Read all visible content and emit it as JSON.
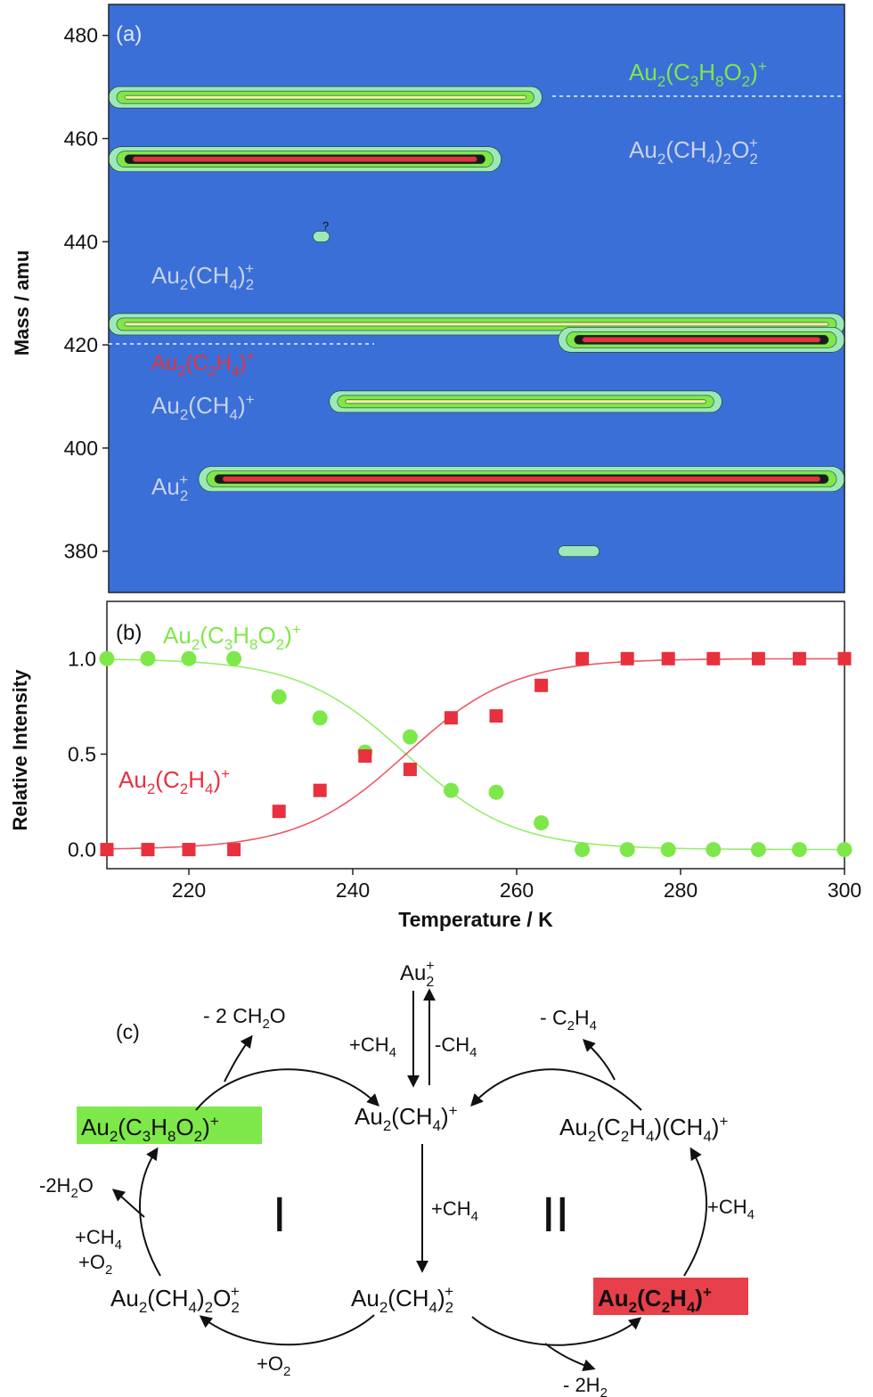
{
  "colors": {
    "background_blue": "#3a6fd8",
    "contour_light": "#9de8b8",
    "contour_green": "#7ee84a",
    "contour_yellow": "#f2f2a0",
    "contour_red": "#e8303e",
    "green_series": "#7ee84a",
    "red_series": "#e8303e",
    "green_label_box": "#7ee84a",
    "red_label_box": "#e8404a"
  },
  "chart_data": [
    {
      "panel": "(a)",
      "type": "heatmap",
      "xlim": [
        210,
        300
      ],
      "ylim": [
        372,
        486
      ],
      "ylabel": "Mass / amu",
      "yticks": [
        "380",
        "400",
        "420",
        "440",
        "460",
        "480"
      ],
      "ytick_values": [
        380,
        400,
        420,
        440,
        460,
        480
      ],
      "annotations": [
        {
          "main": "Au",
          "sub1": "2",
          "mid": "(C",
          "sub2": "3",
          "mid2": "H",
          "sub3": "8",
          "mid3": "O",
          "sub4": "2",
          "end": ")",
          "sup": "+",
          "color": "green",
          "mass": 468
        },
        {
          "main": "Au",
          "sub1": "2",
          "mid": "(CH",
          "sub2": "4",
          "end": ")",
          "sub3": "2",
          "mid2": "O",
          "sub4": "2",
          "sup": "+",
          "color": "light",
          "mass": 456
        },
        {
          "main": "Au",
          "sub1": "2",
          "mid": "(CH",
          "sub2": "4",
          "end": ")",
          "sub3": "2",
          "sup": "+",
          "color": "light",
          "mass": 436
        },
        {
          "main": "Au",
          "sub1": "2",
          "mid": "(C",
          "sub2": "2",
          "mid2": "H",
          "sub3": "4",
          "end": ")",
          "sup": "+",
          "color": "red",
          "mass": 421
        },
        {
          "main": "Au",
          "sub1": "2",
          "mid": "(CH",
          "sub2": "4",
          "end": ")",
          "sup": "+",
          "color": "light",
          "mass": 409
        },
        {
          "main": "Au",
          "sub1": "2",
          "sup": "+",
          "color": "light",
          "mass": 394
        }
      ],
      "question_mark": "?",
      "bands": [
        {
          "name": "Au2(C3H8O2)+",
          "mass": 468,
          "t_start": 210,
          "t_end": 263,
          "peak": "green"
        },
        {
          "name": "Au2(CH4)2O2+",
          "mass": 456,
          "t_start": 210,
          "t_end": 258,
          "peak": "red"
        },
        {
          "name": "Au2(CH4)2+",
          "mass": 424,
          "t_start": 210,
          "t_end": 300,
          "peak": "green"
        },
        {
          "name": "Au2(C2H4)+",
          "mass": 421,
          "t_start": 265,
          "t_end": 300,
          "peak": "red"
        },
        {
          "name": "Au2(CH4)+",
          "mass": 409,
          "t_start": 237,
          "t_end": 285,
          "peak": "green"
        },
        {
          "name": "Au2+",
          "mass": 394,
          "t_start": 221,
          "t_end": 300,
          "peak": "red"
        },
        {
          "name": "unknown",
          "mass": 441,
          "t_start": 235,
          "t_end": 237,
          "peak": "light"
        },
        {
          "name": "unknown",
          "mass": 380,
          "t_start": 265,
          "t_end": 270,
          "peak": "light"
        }
      ]
    },
    {
      "panel": "(b)",
      "type": "scatter",
      "xlabel": "Temperature / K",
      "ylabel": "Relative Intensity",
      "xlim": [
        210,
        300
      ],
      "ylim": [
        -0.1,
        1.3
      ],
      "xticks": [
        "220",
        "240",
        "260",
        "280",
        "300"
      ],
      "xtick_values": [
        220,
        240,
        260,
        280,
        300
      ],
      "yticks": [
        "0.0",
        "0.5",
        "1.0"
      ],
      "ytick_values": [
        0.0,
        0.5,
        1.0
      ],
      "x": [
        210,
        215,
        220,
        225.5,
        231,
        236,
        241.5,
        247,
        252,
        257.5,
        263,
        268,
        273.5,
        278.5,
        284,
        289.5,
        294.5,
        300
      ],
      "series": [
        {
          "name": "Au2(C3H8O2)+",
          "marker": "circle",
          "color": "green",
          "values": [
            1.0,
            1.0,
            1.0,
            1.0,
            0.8,
            0.69,
            0.51,
            0.59,
            0.31,
            0.3,
            0.14,
            0.0,
            0.0,
            0.0,
            0.0,
            0.0,
            0.0,
            0.0
          ],
          "fit": {
            "type": "sigmoid",
            "center": 246.5,
            "width": 6.5
          }
        },
        {
          "name": "Au2(C2H4)+",
          "marker": "square",
          "color": "red",
          "values": [
            0.0,
            0.0,
            0.0,
            0.0,
            0.2,
            0.31,
            0.49,
            0.42,
            0.69,
            0.7,
            0.86,
            1.0,
            1.0,
            1.0,
            1.0,
            1.0,
            1.0,
            1.0
          ],
          "fit": {
            "type": "sigmoid",
            "center": 246.5,
            "width": 6.5
          }
        }
      ]
    }
  ],
  "panel_labels": {
    "a": "(a)",
    "b": "(b)",
    "c": "(c)"
  },
  "scheme": {
    "au2_plus": {
      "main": "Au",
      "sub": "2",
      "sup": "+"
    },
    "plus_ch4_down": "+CH4",
    "minus_ch4_up": "-CH4",
    "au2ch4": "Au2(CH4)+",
    "au2c3h8o2": "Au2(C3H8O2)+",
    "minus_2ch2o": "- 2 CH2O",
    "minus_c2h4": "- C2H4",
    "au2c2h4ch4": "Au2(C2H4)(CH4)+",
    "minus_2h2o": "-2H2O",
    "plus_ch4_o2": [
      "+CH4",
      "+O2"
    ],
    "cycle_one": "I",
    "cycle_two": "II",
    "plus_ch4_mid": "+CH4",
    "plus_ch4_right": "+CH4",
    "au2ch42o2": "Au2(CH4)2O2+",
    "au2ch42": "Au2(CH4)2+",
    "au2c2h4": "Au2(C2H4)+",
    "plus_o2": "+O2",
    "minus_2h2": "- 2H2"
  }
}
